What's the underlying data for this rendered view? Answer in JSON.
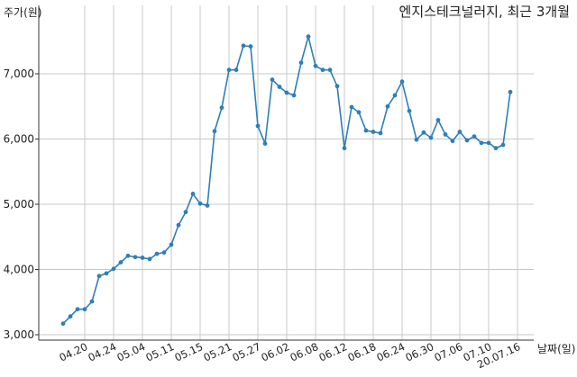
{
  "chart_data": {
    "type": "line",
    "title": "엔지스테크널러지, 최근 3개월",
    "ylabel": "주가(원)",
    "xlabel": "날짜(일)",
    "ylim": [
      3000,
      7800
    ],
    "yticks": [
      3000,
      4000,
      5000,
      6000,
      7000
    ],
    "ytick_labels": [
      "3,000",
      "4,000",
      "5,000",
      "6,000",
      "7,000"
    ],
    "grid": true,
    "line_color": "#2f7fb5",
    "xtick_labels": [
      "04.20",
      "04.24",
      "05.04",
      "05.11",
      "05.15",
      "05.21",
      "05.27",
      "06.02",
      "06.08",
      "06.12",
      "06.18",
      "06.24",
      "06.30",
      "07.06",
      "07.10",
      "20.07.16"
    ],
    "xtick_index": [
      3,
      7,
      11,
      15,
      19,
      23,
      27,
      31,
      35,
      39,
      43,
      47,
      51,
      55,
      59,
      63
    ],
    "series": [
      {
        "values": [
          3170,
          3280,
          3390,
          3390,
          3510,
          3900,
          3940,
          4010,
          4110,
          4210,
          4190,
          4180,
          4160,
          4240,
          4260,
          4380,
          4680,
          4880,
          5160,
          5010,
          4980,
          6120,
          6480,
          7060,
          7060,
          7430,
          7420,
          6200,
          5930,
          6910,
          6800,
          6710,
          6670,
          7170,
          7570,
          7120,
          7060,
          7060,
          6810,
          5860,
          6490,
          6410,
          6130,
          6110,
          6090,
          6500,
          6670,
          6880,
          6430,
          5990,
          6100,
          6020,
          6290,
          6070,
          5970,
          6110,
          5980,
          6040,
          5940,
          5940,
          5860,
          5910,
          6720
        ]
      }
    ]
  }
}
